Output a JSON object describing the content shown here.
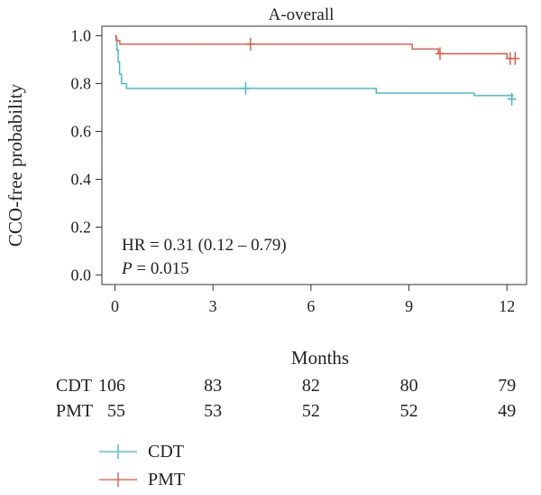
{
  "chart_data": {
    "type": "line",
    "title": "A-overall",
    "xlabel": "Months",
    "ylabel": "CCO-free probability",
    "xlim": [
      -0.4,
      12.6
    ],
    "ylim": [
      -0.04,
      1.04
    ],
    "xticks": [
      0,
      3,
      6,
      9,
      12
    ],
    "yticks": [
      0.0,
      0.2,
      0.4,
      0.6,
      0.8,
      1.0
    ],
    "grid": false,
    "annotations": {
      "hr": "HR = 0.31 (0.12 – 0.79)",
      "p_label": "P",
      "p_value": " = 0.015"
    },
    "series": [
      {
        "name": "CDT",
        "color": "#3cb8cc",
        "steps": [
          [
            0,
            1.0
          ],
          [
            0.03,
            0.99
          ],
          [
            0.06,
            0.94
          ],
          [
            0.1,
            0.89
          ],
          [
            0.14,
            0.84
          ],
          [
            0.2,
            0.8
          ],
          [
            0.35,
            0.78
          ],
          [
            8.0,
            0.76
          ],
          [
            11.0,
            0.75
          ],
          [
            12.2,
            0.75
          ]
        ],
        "censors": [
          [
            4.0,
            0.78
          ],
          [
            12.15,
            0.735
          ]
        ]
      },
      {
        "name": "PMT",
        "color": "#e8533a",
        "steps": [
          [
            0,
            1.0
          ],
          [
            0.04,
            0.98
          ],
          [
            0.15,
            0.965
          ],
          [
            9.1,
            0.945
          ],
          [
            9.9,
            0.925
          ],
          [
            12.0,
            0.905
          ],
          [
            12.3,
            0.905
          ]
        ],
        "censors": [
          [
            4.15,
            0.965
          ],
          [
            9.95,
            0.925
          ],
          [
            12.1,
            0.905
          ],
          [
            12.25,
            0.905
          ]
        ]
      }
    ],
    "risk_table": {
      "rows": [
        {
          "name": "CDT",
          "color": "#3cb8cc",
          "counts": [
            106,
            83,
            82,
            80,
            79
          ]
        },
        {
          "name": "PMT",
          "color": "#e8533a",
          "counts": [
            55,
            53,
            52,
            52,
            49
          ]
        }
      ]
    },
    "legend": {
      "position": "bottom-left",
      "entries": [
        {
          "name": "CDT",
          "color": "#3cb8cc"
        },
        {
          "name": "PMT",
          "color": "#e8533a"
        }
      ]
    }
  }
}
